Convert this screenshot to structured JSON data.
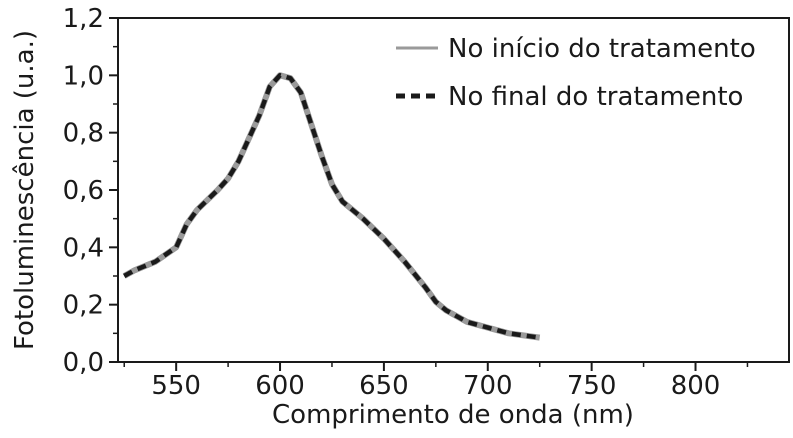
{
  "chart_data": {
    "type": "line",
    "xlabel": "Comprimento de onda (nm)",
    "ylabel": "Fotoluminescência (u.a.)",
    "xlim": [
      522,
      845
    ],
    "ylim": [
      0,
      1.2
    ],
    "x_ticks": [
      {
        "value": 550,
        "label": "550"
      },
      {
        "value": 600,
        "label": "600"
      },
      {
        "value": 650,
        "label": "650"
      },
      {
        "value": 700,
        "label": "700"
      },
      {
        "value": 750,
        "label": "750"
      },
      {
        "value": 800,
        "label": "800"
      }
    ],
    "y_ticks": [
      {
        "value": 0.0,
        "label": "0,0"
      },
      {
        "value": 0.2,
        "label": "0,2"
      },
      {
        "value": 0.4,
        "label": "0,4"
      },
      {
        "value": 0.6,
        "label": "0,6"
      },
      {
        "value": 0.8,
        "label": "0,8"
      },
      {
        "value": 1.0,
        "label": "1,0"
      },
      {
        "value": 1.2,
        "label": "1,2"
      }
    ],
    "legend_position": "top-right",
    "grid": false,
    "series": [
      {
        "name": "No início do tratamento",
        "style": "solid",
        "color": "#9a9a9a",
        "x": [
          525,
          530,
          540,
          550,
          555,
          560,
          570,
          575,
          580,
          585,
          590,
          595,
          600,
          605,
          610,
          615,
          620,
          625,
          630,
          640,
          650,
          660,
          670,
          675,
          680,
          690,
          700,
          710,
          720,
          725
        ],
        "y": [
          0.3,
          0.32,
          0.35,
          0.4,
          0.48,
          0.53,
          0.6,
          0.64,
          0.7,
          0.78,
          0.86,
          0.96,
          1.0,
          0.99,
          0.94,
          0.83,
          0.72,
          0.62,
          0.56,
          0.5,
          0.43,
          0.35,
          0.26,
          0.21,
          0.18,
          0.14,
          0.12,
          0.1,
          0.09,
          0.085
        ]
      },
      {
        "name": "No final do tratamento",
        "style": "dashed",
        "color": "#1a1a1a",
        "x": [
          525,
          530,
          540,
          550,
          555,
          560,
          570,
          575,
          580,
          585,
          590,
          595,
          600,
          605,
          610,
          615,
          620,
          625,
          630,
          640,
          650,
          660,
          670,
          675,
          680,
          690,
          700,
          710,
          720,
          725
        ],
        "y": [
          0.3,
          0.32,
          0.35,
          0.4,
          0.48,
          0.53,
          0.6,
          0.64,
          0.7,
          0.78,
          0.86,
          0.96,
          1.0,
          0.99,
          0.94,
          0.83,
          0.72,
          0.62,
          0.56,
          0.5,
          0.43,
          0.35,
          0.26,
          0.21,
          0.18,
          0.14,
          0.12,
          0.1,
          0.09,
          0.085
        ]
      }
    ]
  }
}
